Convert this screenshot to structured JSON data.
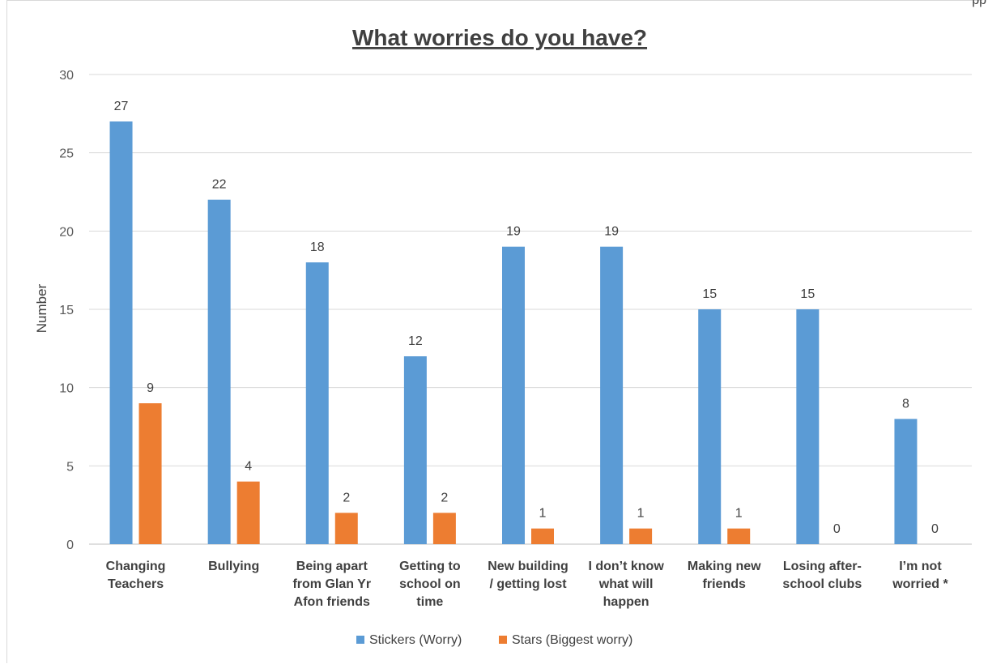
{
  "corner_text": "pp",
  "chart_data": {
    "type": "bar",
    "title": "What worries do you have?",
    "xlabel": "",
    "ylabel": "Number",
    "ylim": [
      0,
      30
    ],
    "yticks": [
      0,
      5,
      10,
      15,
      20,
      25,
      30
    ],
    "grid": true,
    "legend_position": "bottom",
    "categories": [
      [
        "Changing",
        "Teachers"
      ],
      [
        "Bullying"
      ],
      [
        "Being apart",
        "from Glan Yr",
        "Afon friends"
      ],
      [
        "Getting to",
        "school on",
        "time"
      ],
      [
        "New building",
        "/ getting lost"
      ],
      [
        "I don’t know",
        "what will",
        "happen"
      ],
      [
        "Making new",
        "friends"
      ],
      [
        "Losing after-",
        "school clubs"
      ],
      [
        "I’m not",
        "worried *"
      ]
    ],
    "series": [
      {
        "name": "Stickers (Worry)",
        "color": "#5b9bd5",
        "values": [
          27,
          22,
          18,
          12,
          19,
          19,
          15,
          15,
          8
        ]
      },
      {
        "name": "Stars (Biggest worry)",
        "color": "#ed7d31",
        "values": [
          9,
          4,
          2,
          2,
          1,
          1,
          1,
          0,
          0
        ]
      }
    ]
  }
}
